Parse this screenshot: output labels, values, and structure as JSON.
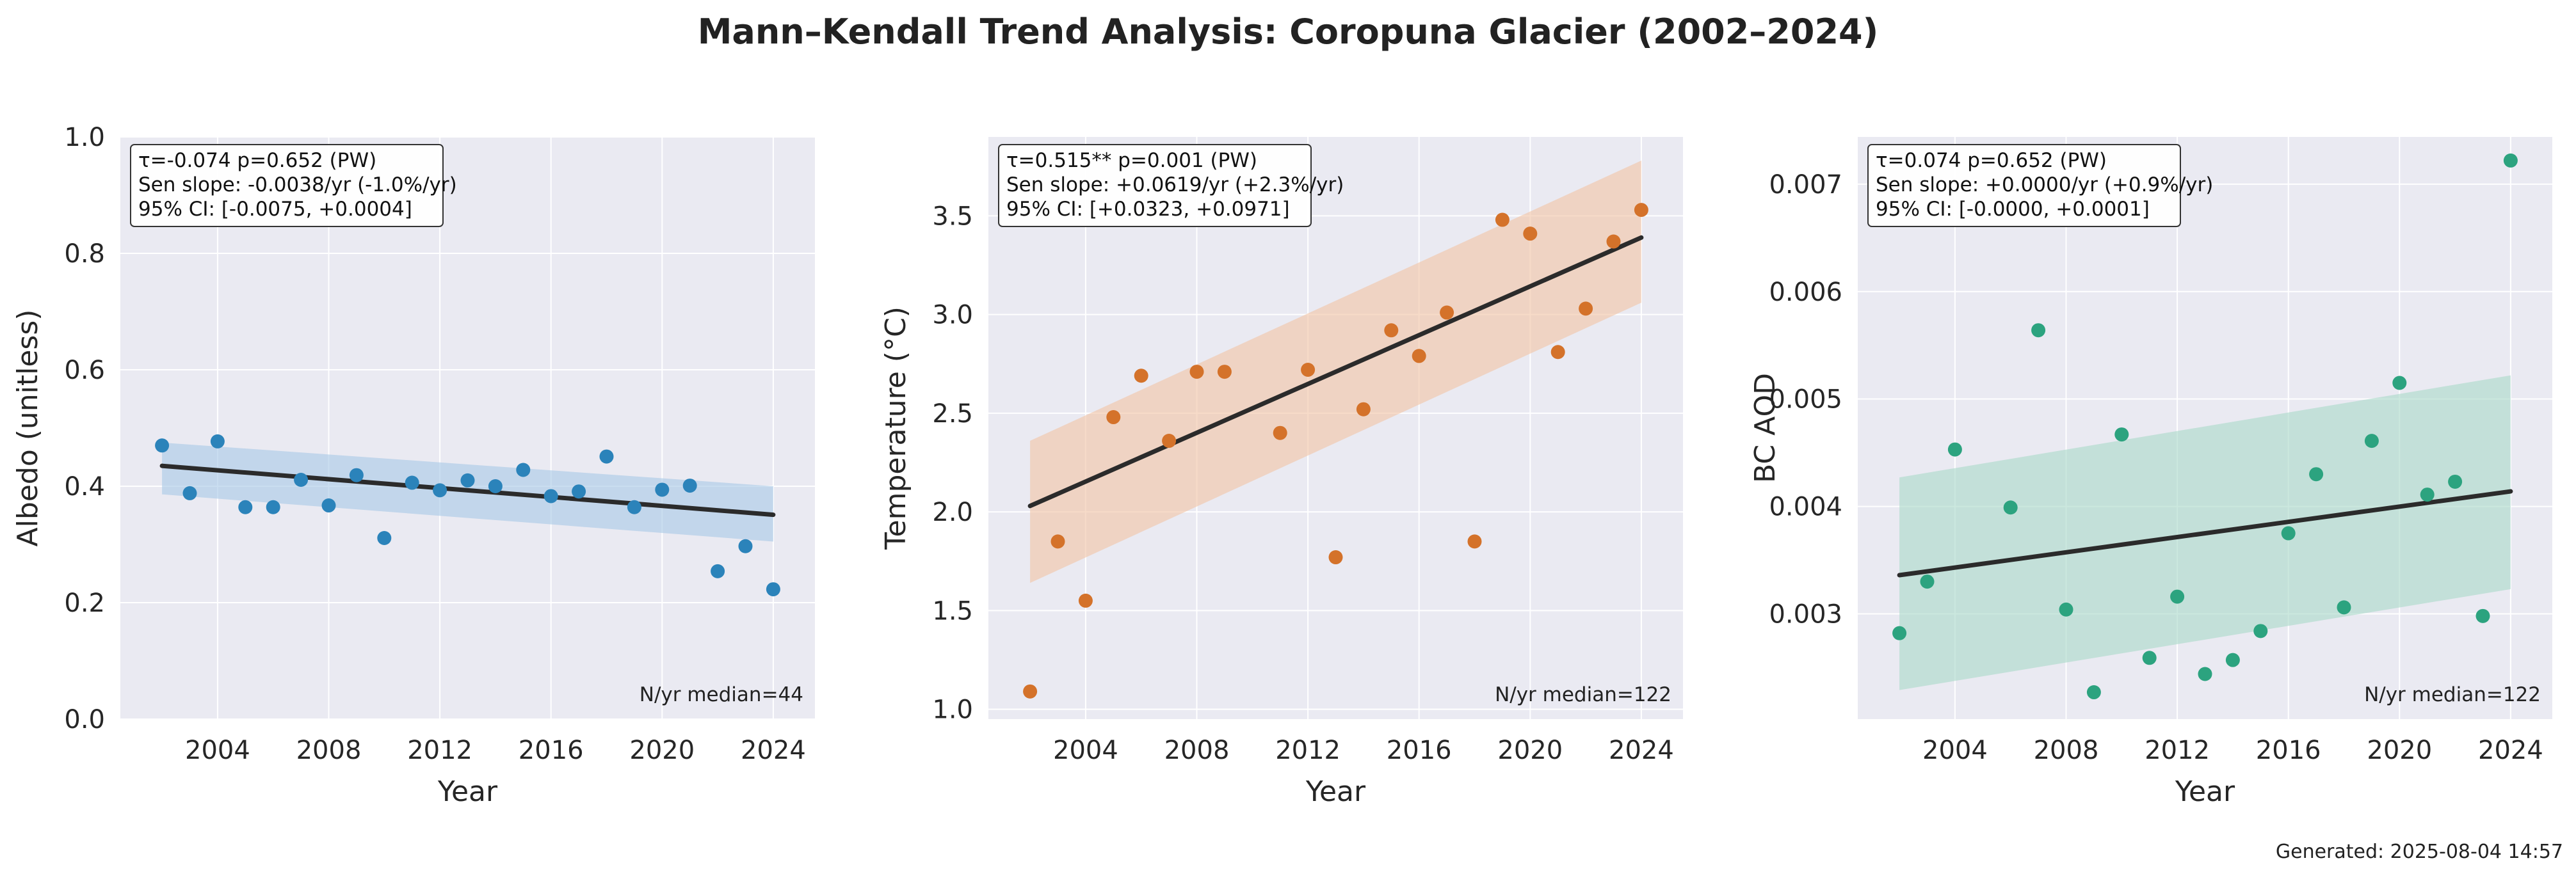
{
  "figure": {
    "title": "Mann–Kendall Trend Analysis: Coropuna Glacier (2002–2024)",
    "footer": "Generated: 2025-08-04 14:57"
  },
  "chart_data": [
    {
      "type": "scatter",
      "xlabel": "Year",
      "ylabel": "Albedo (unitless)",
      "xlim": [
        2000.5,
        2025.5
      ],
      "ylim": [
        0.0,
        1.0
      ],
      "xticks": [
        2004,
        2008,
        2012,
        2016,
        2020,
        2024
      ],
      "yticks": [
        0.0,
        0.2,
        0.4,
        0.6,
        0.8,
        1.0
      ],
      "ytick_labels": [
        "0.0",
        "0.2",
        "0.4",
        "0.6",
        "0.8",
        "1.0"
      ],
      "point_color": "#2b83ba",
      "band_color": "#a6c8e6",
      "grid": true,
      "stats": [
        "τ=-0.074  p=0.652 (PW)",
        "Sen slope: -0.0038/yr (-1.0%/yr)",
        "95% CI: [-0.0075, +0.0004]"
      ],
      "annotation": "N/yr median=44",
      "x": [
        2002,
        2003,
        2004,
        2005,
        2006,
        2007,
        2008,
        2009,
        2010,
        2011,
        2012,
        2013,
        2014,
        2015,
        2016,
        2017,
        2018,
        2019,
        2020,
        2021,
        2022,
        2023,
        2024
      ],
      "y": [
        0.47,
        0.388,
        0.477,
        0.364,
        0.364,
        0.411,
        0.367,
        0.419,
        0.311,
        0.406,
        0.393,
        0.41,
        0.4,
        0.428,
        0.383,
        0.391,
        0.451,
        0.364,
        0.394,
        0.401,
        0.254,
        0.297,
        0.223
      ],
      "trend": {
        "x": [
          2002,
          2024
        ],
        "y": [
          0.435,
          0.351
        ]
      },
      "band": {
        "x": [
          2002,
          2024
        ],
        "upper": [
          0.475,
          0.4
        ],
        "lower": [
          0.386,
          0.305
        ]
      }
    },
    {
      "type": "scatter",
      "xlabel": "Year",
      "ylabel": "Temperature (°C)",
      "xlim": [
        2000.5,
        2025.5
      ],
      "ylim": [
        0.95,
        3.9
      ],
      "xticks": [
        2004,
        2008,
        2012,
        2016,
        2020,
        2024
      ],
      "yticks": [
        1.0,
        1.5,
        2.0,
        2.5,
        3.0,
        3.5
      ],
      "ytick_labels": [
        "1.0",
        "1.5",
        "2.0",
        "2.5",
        "3.0",
        "3.5"
      ],
      "point_color": "#d4722a",
      "band_color": "#f2c3a4",
      "grid": true,
      "stats": [
        "τ=0.515**  p=0.001 (PW)",
        "Sen slope: +0.0619/yr (+2.3%/yr)",
        "95% CI: [+0.0323, +0.0971]"
      ],
      "annotation": "N/yr median=122",
      "x": [
        2002,
        2003,
        2004,
        2005,
        2006,
        2007,
        2008,
        2009,
        2011,
        2012,
        2013,
        2014,
        2015,
        2016,
        2017,
        2018,
        2019,
        2020,
        2021,
        2022,
        2023,
        2024
      ],
      "y": [
        1.09,
        1.85,
        1.55,
        2.48,
        2.69,
        2.36,
        2.71,
        2.71,
        2.4,
        2.72,
        1.77,
        2.52,
        2.92,
        2.79,
        3.01,
        1.85,
        3.48,
        3.41,
        2.81,
        3.03,
        3.37,
        3.53
      ],
      "trend": {
        "x": [
          2002,
          2024
        ],
        "y": [
          2.03,
          3.39
        ]
      },
      "band": {
        "x": [
          2002,
          2024
        ],
        "upper": [
          2.36,
          3.78
        ],
        "lower": [
          1.64,
          3.06
        ]
      }
    },
    {
      "type": "scatter",
      "xlabel": "Year",
      "ylabel": "BC AOD",
      "xlim": [
        2000.5,
        2025.5
      ],
      "ylim": [
        0.00202,
        0.00744
      ],
      "xticks": [
        2004,
        2008,
        2012,
        2016,
        2020,
        2024
      ],
      "yticks": [
        0.003,
        0.004,
        0.005,
        0.006,
        0.007
      ],
      "ytick_labels": [
        "0.003",
        "0.004",
        "0.005",
        "0.006",
        "0.007"
      ],
      "point_color": "#2ca37f",
      "band_color": "#a8d8c8",
      "grid": true,
      "stats": [
        "τ=0.074  p=0.652 (PW)",
        "Sen slope: +0.0000/yr (+0.9%/yr)",
        "95% CI: [-0.0000, +0.0001]"
      ],
      "annotation": "N/yr median=122",
      "x": [
        2002,
        2003,
        2004,
        2006,
        2007,
        2008,
        2009,
        2010,
        2011,
        2012,
        2013,
        2014,
        2015,
        2016,
        2017,
        2018,
        2019,
        2020,
        2021,
        2022,
        2023,
        2024
      ],
      "y": [
        0.00282,
        0.0033,
        0.00453,
        0.00399,
        0.00564,
        0.00304,
        0.00227,
        0.00467,
        0.00259,
        0.00316,
        0.00244,
        0.00257,
        0.00284,
        0.00375,
        0.0043,
        0.00306,
        0.00461,
        0.00515,
        0.00411,
        0.00423,
        0.00298,
        0.00722
      ],
      "trend": {
        "x": [
          2002,
          2024
        ],
        "y": [
          0.00336,
          0.00414
        ]
      },
      "band": {
        "x": [
          2002,
          2024
        ],
        "upper": [
          0.00427,
          0.00522
        ],
        "lower": [
          0.00229,
          0.00323
        ]
      }
    }
  ]
}
